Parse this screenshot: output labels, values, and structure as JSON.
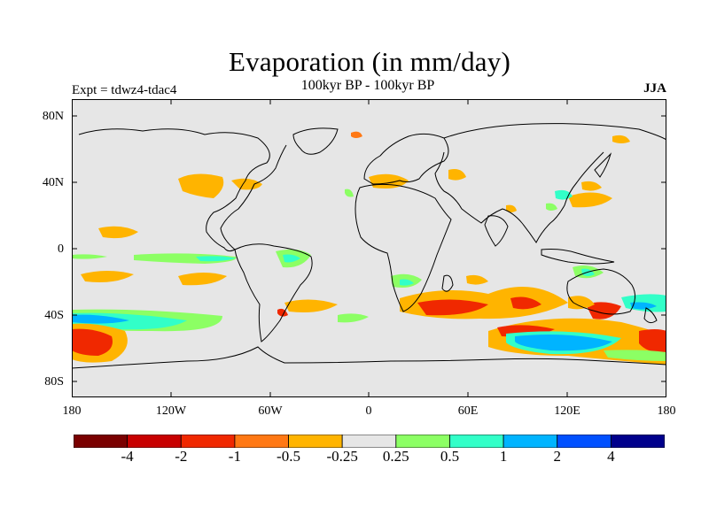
{
  "title": "Evaporation (in mm/day)",
  "subtitle": "100kyr BP - 100kyr BP",
  "left_label": "Expt = tdwz4-tdac4",
  "right_label": "JJA",
  "lat_labels": [
    "80N",
    "40N",
    "0",
    "40S",
    "80S"
  ],
  "lon_labels": [
    "180",
    "120W",
    "60W",
    "0",
    "60E",
    "120E",
    "180"
  ],
  "colorbar": {
    "colors": [
      "#7a0000",
      "#c80000",
      "#f02800",
      "#ff7814",
      "#ffb400",
      "#e6e6e6",
      "#8cff64",
      "#32ffc8",
      "#00b4ff",
      "#0050ff",
      "#00008c"
    ],
    "labels": [
      "-4",
      "-2",
      "-1",
      "-0.5",
      "-0.25",
      "0.25",
      "0.5",
      "1",
      "2",
      "4"
    ]
  },
  "map_background": "#e6e6e6"
}
